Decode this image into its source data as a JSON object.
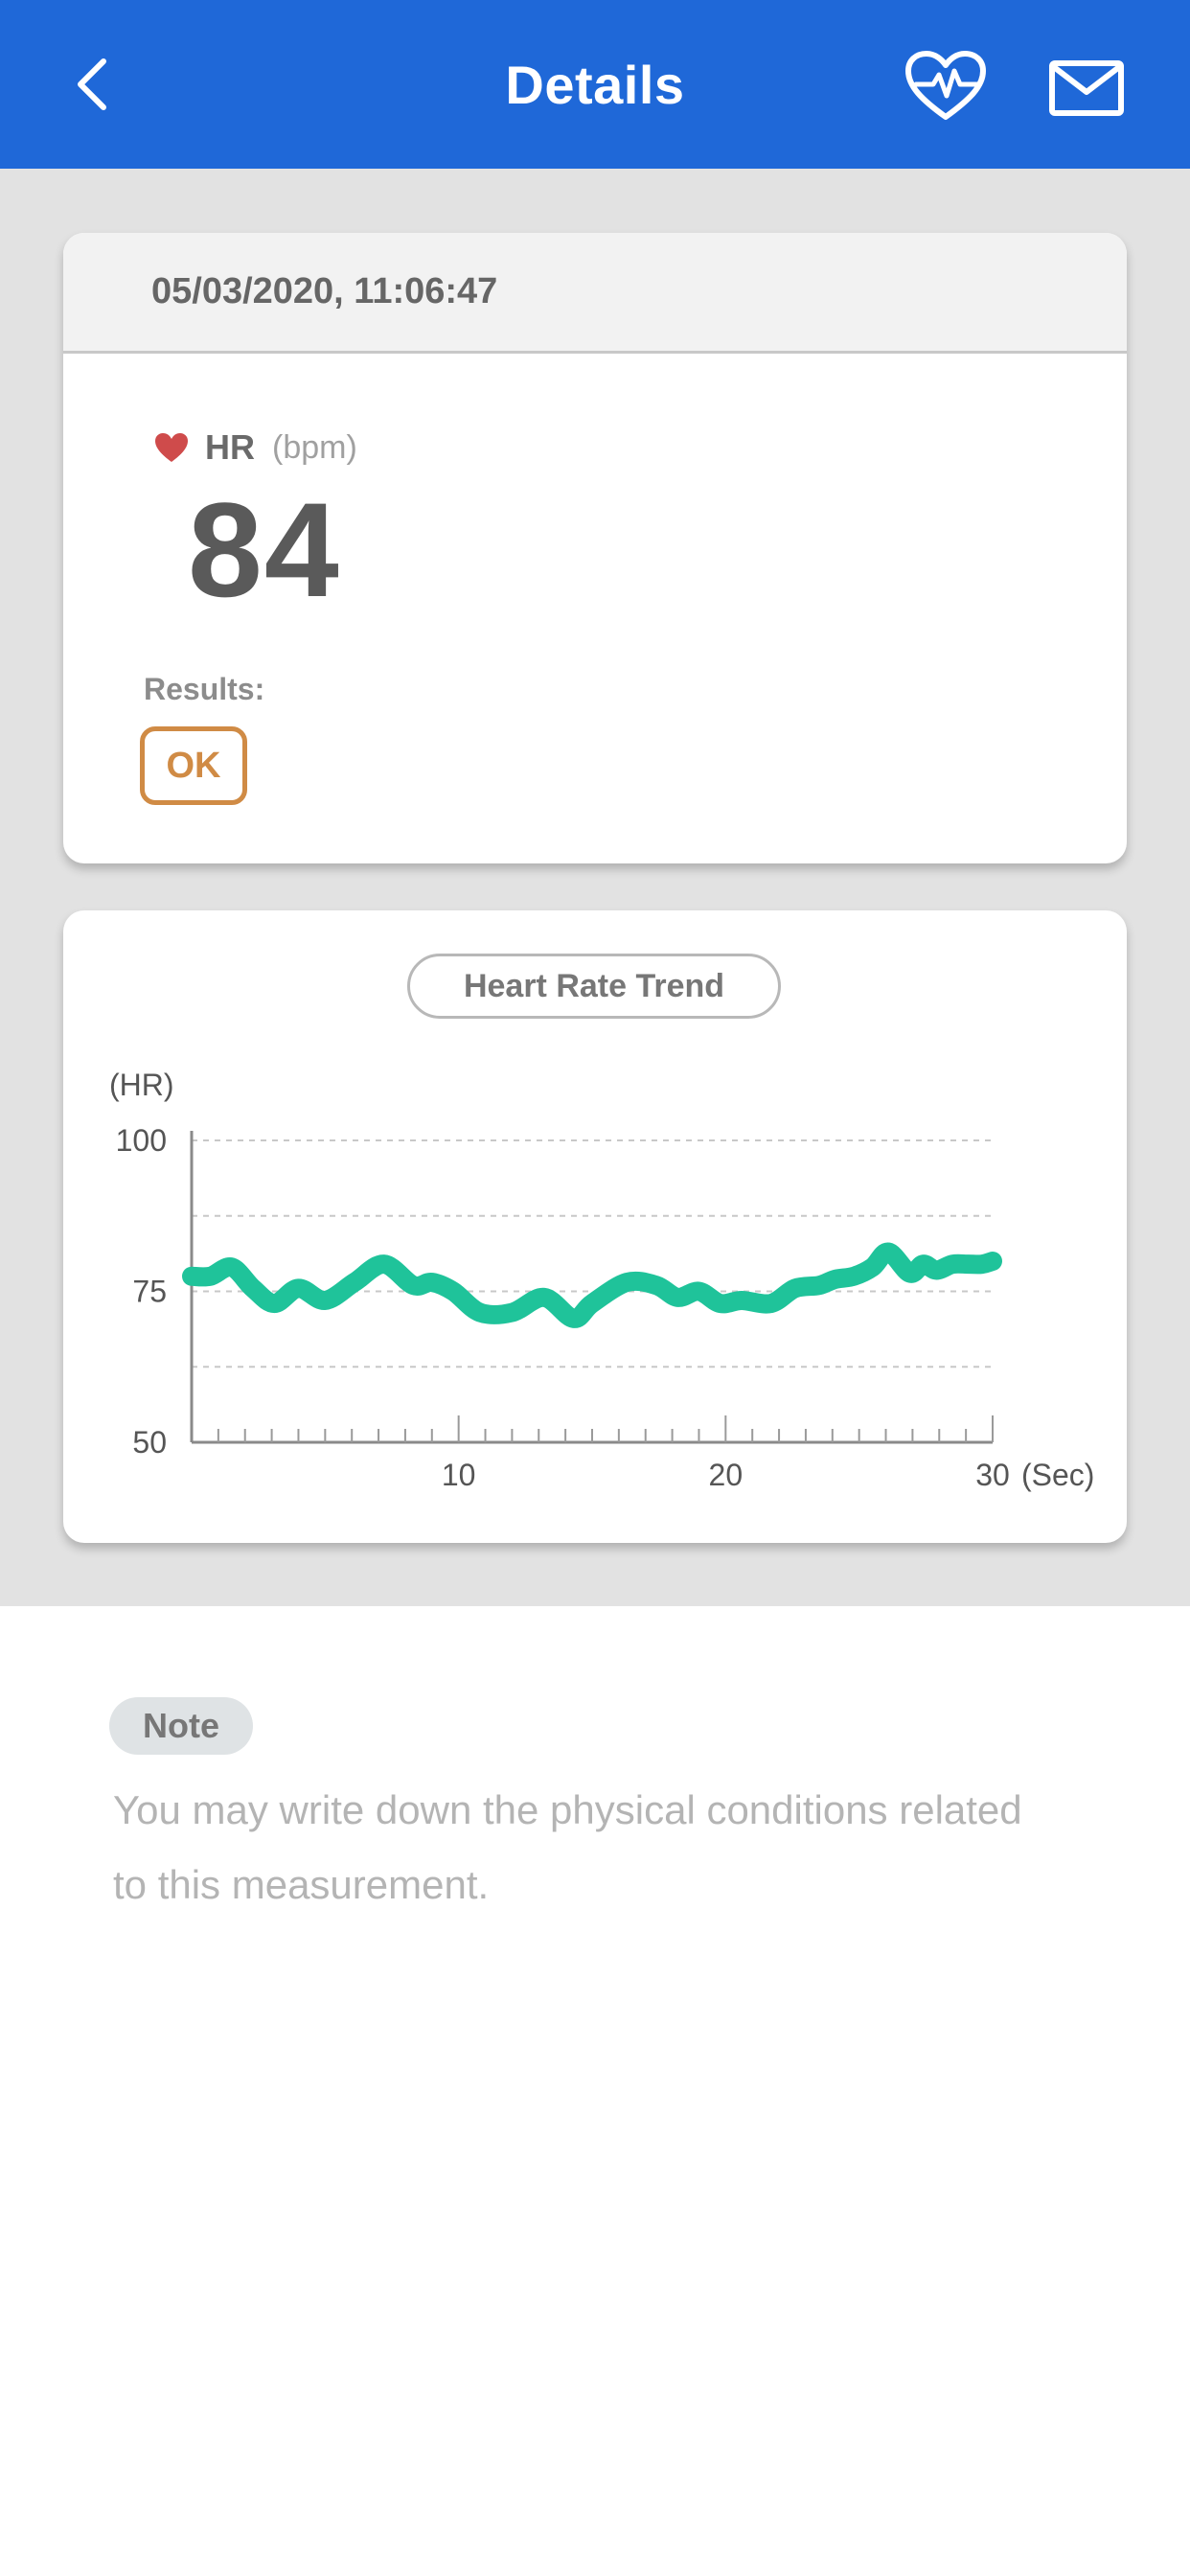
{
  "header": {
    "title": "Details",
    "back_icon": "chevron-left-icon",
    "heartbeat_icon": "heart-pulse-icon",
    "mail_icon": "envelope-icon",
    "bg_color": "#1f68d8"
  },
  "record": {
    "datetime": "05/03/2020, 11:06:47",
    "hr_label": "HR",
    "unit": "(bpm)",
    "value": "84",
    "results_label": "Results:",
    "result": "OK",
    "result_color": "#d08b45"
  },
  "trend": {
    "title": "Heart Rate Trend"
  },
  "chart_data": {
    "type": "line",
    "title": "Heart Rate Trend",
    "ylabel": "(HR)",
    "xlabel": "(Sec)",
    "ylim": [
      50,
      100
    ],
    "xlim": [
      0,
      30
    ],
    "yticks": [
      "100",
      "75",
      "50"
    ],
    "xticks": [
      "10",
      "20",
      "30"
    ],
    "grid": true,
    "line_color": "#1fc39a",
    "series": [
      {
        "x": [
          0,
          0.7,
          1.5,
          2.3,
          3.1,
          4.0,
          5.0,
          6.1,
          7.2,
          8.3,
          9.0,
          9.8,
          10.8,
          12.0,
          13.2,
          14.3,
          15.0,
          16.3,
          17.4,
          18.2,
          19.0,
          19.8,
          20.6,
          21.7,
          22.6,
          23.5,
          24.1,
          24.8,
          25.5,
          26.1,
          26.9,
          27.4,
          27.9,
          28.5,
          29.1,
          29.6,
          30.0
        ],
        "y": [
          77.5,
          77.5,
          79.0,
          75.5,
          73.0,
          75.5,
          73.5,
          76.5,
          79.5,
          76.0,
          76.5,
          75.0,
          71.5,
          71.5,
          74.0,
          70.5,
          73.0,
          76.5,
          76.0,
          74.0,
          75.0,
          73.0,
          73.5,
          73.0,
          75.5,
          76.0,
          77.0,
          77.5,
          79.0,
          81.5,
          78.0,
          79.5,
          78.5,
          79.5,
          79.5,
          79.5,
          80.0
        ]
      }
    ]
  },
  "note": {
    "label": "Note",
    "placeholder": "You may write down the physical conditions related to this measurement."
  }
}
